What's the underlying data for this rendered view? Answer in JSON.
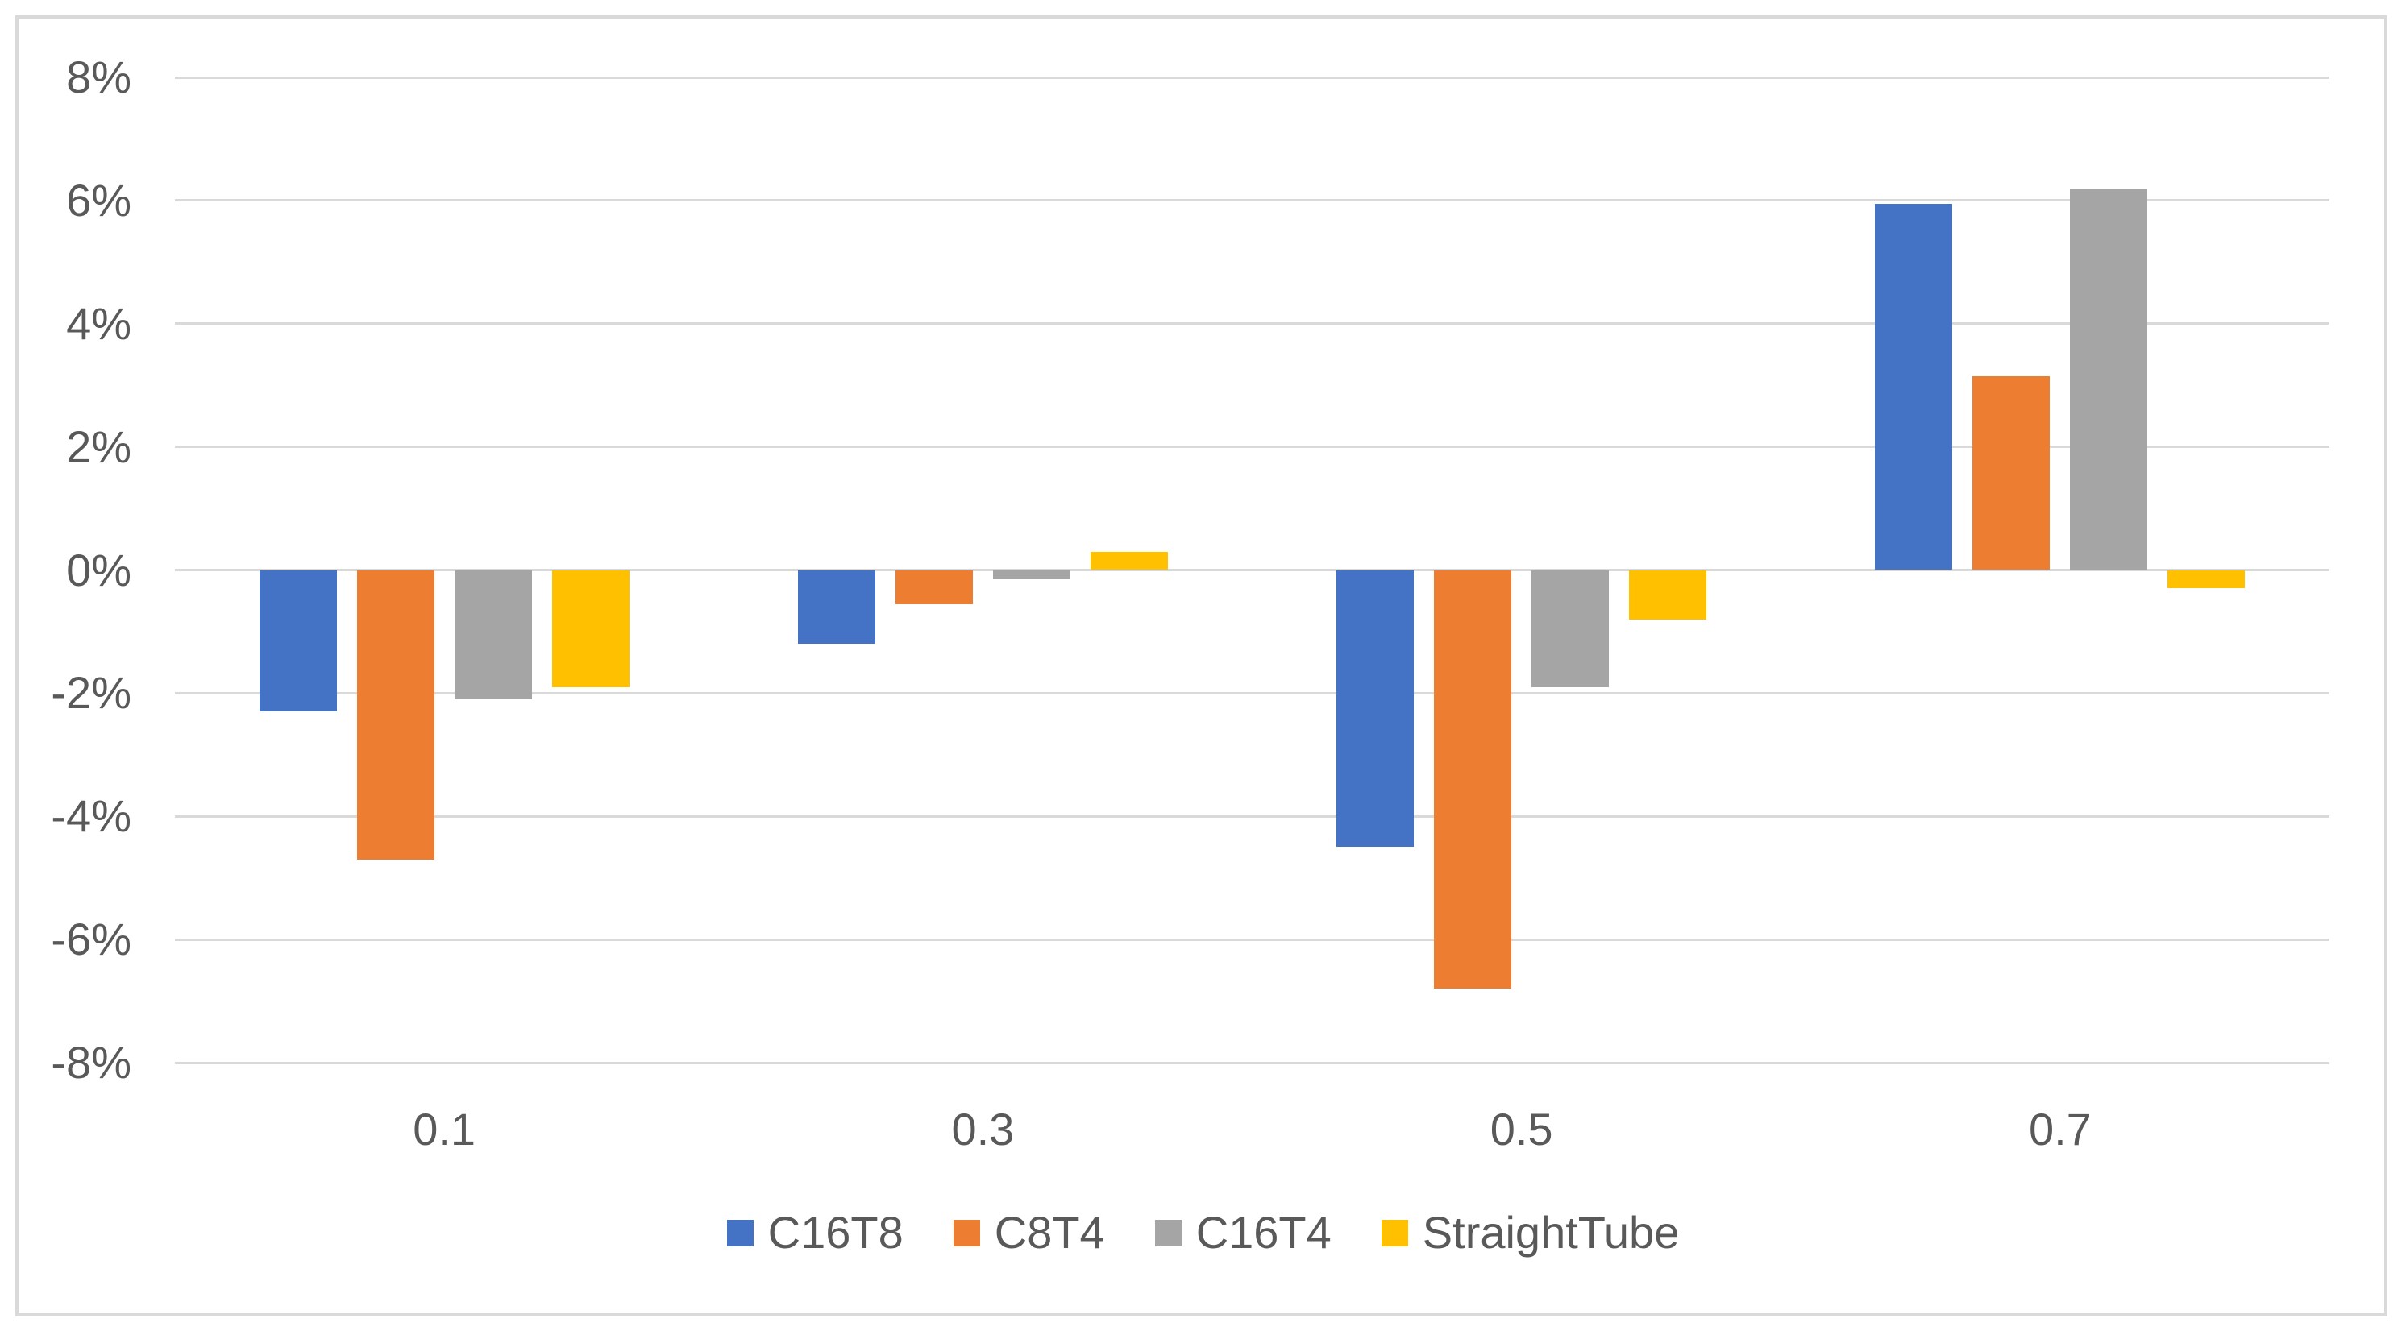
{
  "chart_data": {
    "type": "bar",
    "title": "",
    "xlabel": "",
    "ylabel": "",
    "categories": [
      "0.1",
      "0.3",
      "0.5",
      "0.7"
    ],
    "series": [
      {
        "name": "C16T8",
        "color": "#4472C4",
        "values": [
          -2.3,
          -1.2,
          -4.5,
          5.95
        ]
      },
      {
        "name": "C8T4",
        "color": "#ED7D31",
        "values": [
          -4.7,
          -0.55,
          -6.8,
          3.15
        ]
      },
      {
        "name": "C16T4",
        "color": "#A5A5A5",
        "values": [
          -2.1,
          -0.15,
          -1.9,
          6.2
        ]
      },
      {
        "name": "StraightTube",
        "color": "#FFC000",
        "values": [
          -1.9,
          0.3,
          -0.8,
          -0.3
        ]
      }
    ],
    "y_ticks": [
      {
        "label": "8%",
        "value": 8
      },
      {
        "label": "6%",
        "value": 6
      },
      {
        "label": "4%",
        "value": 4
      },
      {
        "label": "2%",
        "value": 2
      },
      {
        "label": "0%",
        "value": 0
      },
      {
        "label": "-2%",
        "value": -2
      },
      {
        "label": "-4%",
        "value": -4
      },
      {
        "label": "-6%",
        "value": -6
      },
      {
        "label": "-8%",
        "value": -8
      }
    ],
    "ylim": [
      -8,
      8
    ],
    "value_format": "percent",
    "grid": true,
    "legend_position": "bottom"
  },
  "style": {
    "background": "#FFFFFF",
    "frame_border_color": "#D9D9D9",
    "gridline_color": "#D9D9D9",
    "text_color": "#595959"
  }
}
